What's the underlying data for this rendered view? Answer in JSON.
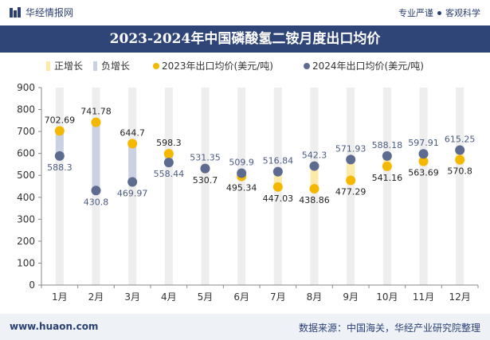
{
  "header": {
    "brand": "华经情报网",
    "tagline_left": "专业严谨",
    "tagline_right": "客观科学"
  },
  "footer": {
    "website": "www.huaon.com",
    "source": "数据来源：中国海关，华经产业研究院整理"
  },
  "colors": {
    "header_bar": "#2f4577",
    "positive_band": "#fde9a8",
    "negative_band": "#c9d1e3",
    "series_2023": "#f5b800",
    "series_2024": "#5c6b8f",
    "column_bg": "#eeeeee"
  },
  "chart_data": {
    "type": "line",
    "title": "2023-2024年中国磷酸氢二铵月度出口均价",
    "categories": [
      "1月",
      "2月",
      "3月",
      "4月",
      "5月",
      "6月",
      "7月",
      "8月",
      "9月",
      "10月",
      "11月",
      "12月"
    ],
    "legend": [
      "正增长",
      "负增长",
      "2023年出口均价(美元/吨)",
      "2024年出口均价(美元/吨)"
    ],
    "legend_position": "top",
    "series": [
      {
        "name": "2023年出口均价(美元/吨)",
        "values": [
          702.69,
          741.78,
          644.7,
          598.3,
          530.7,
          495.34,
          447.03,
          438.86,
          477.29,
          541.16,
          563.69,
          570.8
        ]
      },
      {
        "name": "2024年出口均价(美元/吨)",
        "values": [
          588.3,
          430.8,
          469.97,
          558.44,
          531.35,
          509.9,
          516.84,
          542.3,
          571.93,
          588.18,
          597.91,
          615.25
        ]
      }
    ],
    "labels_2023": [
      "702.69",
      "741.78",
      "644.7",
      "598.3",
      "530.7",
      "495.34",
      "447.03",
      "438.86",
      "477.29",
      "541.16",
      "563.69",
      "570.8"
    ],
    "labels_2024": [
      "588.3",
      "430.8",
      "469.97",
      "558.44",
      "531.35",
      "509.9",
      "516.84",
      "542.3",
      "571.93",
      "588.18",
      "597.91",
      "615.25"
    ],
    "y_ticks": [
      "0",
      "100",
      "200",
      "300",
      "400",
      "500",
      "600",
      "700",
      "800",
      "900"
    ],
    "ylim": [
      0,
      900
    ],
    "grid": false
  }
}
